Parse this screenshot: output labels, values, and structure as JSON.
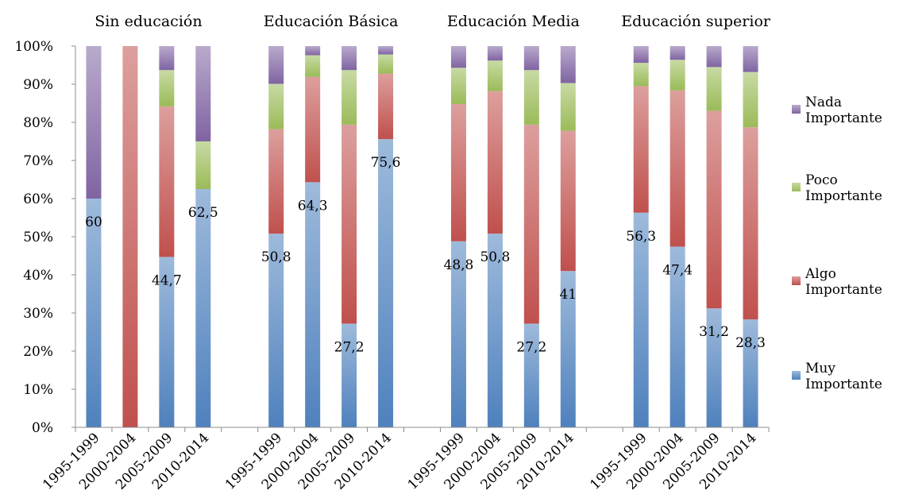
{
  "chart_data": {
    "type": "bar",
    "stacked": true,
    "percent_stacked": true,
    "groups": [
      "Sin educación",
      "Educación Básica",
      "Educación Media",
      "Educación superior"
    ],
    "categories": [
      "1995-1999",
      "2000-2004",
      "2005-2009",
      "2010-2014"
    ],
    "y_ticks": [
      "0%",
      "10%",
      "20%",
      "30%",
      "40%",
      "50%",
      "60%",
      "70%",
      "80%",
      "90%",
      "100%"
    ],
    "ylim": [
      0,
      100
    ],
    "grid": false,
    "legend_position": "right",
    "series": [
      {
        "name": "Muy Importante",
        "color": "#4f81bd",
        "values": [
          [
            60,
            0,
            44.7,
            62.5
          ],
          [
            50.8,
            64.3,
            27.2,
            75.6
          ],
          [
            48.8,
            50.8,
            27.2,
            41
          ],
          [
            56.3,
            47.4,
            31.2,
            28.3
          ]
        ]
      },
      {
        "name": "Algo Importante",
        "color": "#c0504d",
        "values": [
          [
            0,
            100,
            39.5,
            0
          ],
          [
            27.4,
            27.6,
            52.2,
            17.2
          ],
          [
            36,
            37.4,
            52.2,
            36.8
          ],
          [
            33.2,
            41,
            51.8,
            50.4
          ]
        ]
      },
      {
        "name": "Poco Importante",
        "color": "#9bbb59",
        "values": [
          [
            0,
            0,
            9.5,
            12.5
          ],
          [
            11.9,
            5.7,
            14.3,
            5
          ],
          [
            9.5,
            8,
            14.3,
            12.5
          ],
          [
            6.1,
            8,
            11.5,
            14.5
          ]
        ]
      },
      {
        "name": "Nada Importante",
        "color": "#8064a2",
        "values": [
          [
            40,
            0,
            6.3,
            25
          ],
          [
            9.9,
            2.4,
            6.3,
            2.2
          ],
          [
            5.7,
            3.8,
            6.3,
            9.7
          ],
          [
            4.4,
            3.6,
            5.5,
            6.8
          ]
        ]
      }
    ],
    "data_labels": [
      [
        "60",
        "",
        "44,7",
        "62,5"
      ],
      [
        "50,8",
        "64,3",
        "27,2",
        "75,6"
      ],
      [
        "48,8",
        "50,8",
        "27,2",
        "41"
      ],
      [
        "56,3",
        "47,4",
        "31,2",
        "28,3"
      ]
    ],
    "legend": [
      {
        "line1": "Nada",
        "line2": "Importante",
        "series": 3
      },
      {
        "line1": "Poco",
        "line2": "Importante",
        "series": 2
      },
      {
        "line1": "Algo",
        "line2": "Importante",
        "series": 1
      },
      {
        "line1": "Muy",
        "line2": "Importante",
        "series": 0
      }
    ]
  }
}
